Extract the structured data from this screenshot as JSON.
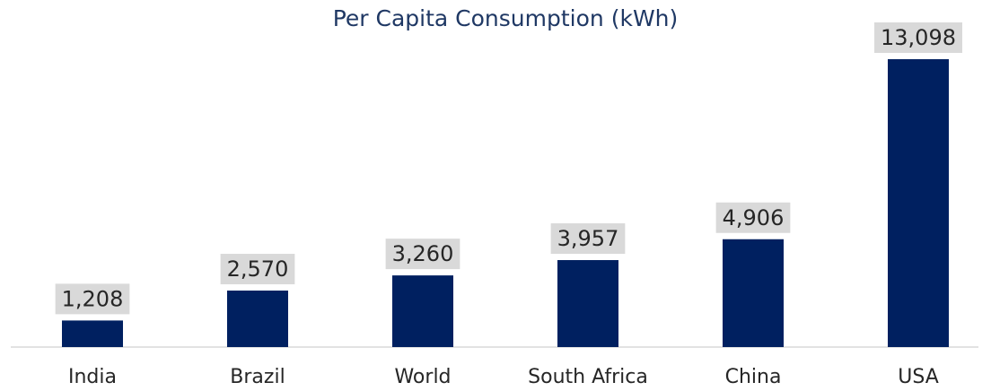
{
  "chart_data": {
    "type": "bar",
    "title": "Per Capita Consumption (kWh)",
    "categories": [
      "India",
      "Brazil",
      "World",
      "South Africa",
      "China",
      "USA"
    ],
    "values": [
      1208,
      2570,
      3260,
      3957,
      4906,
      13098
    ],
    "value_labels": [
      "1,208",
      "2,570",
      "3,260",
      "3,957",
      "4,906",
      "13,098"
    ],
    "color": "#002060"
  }
}
